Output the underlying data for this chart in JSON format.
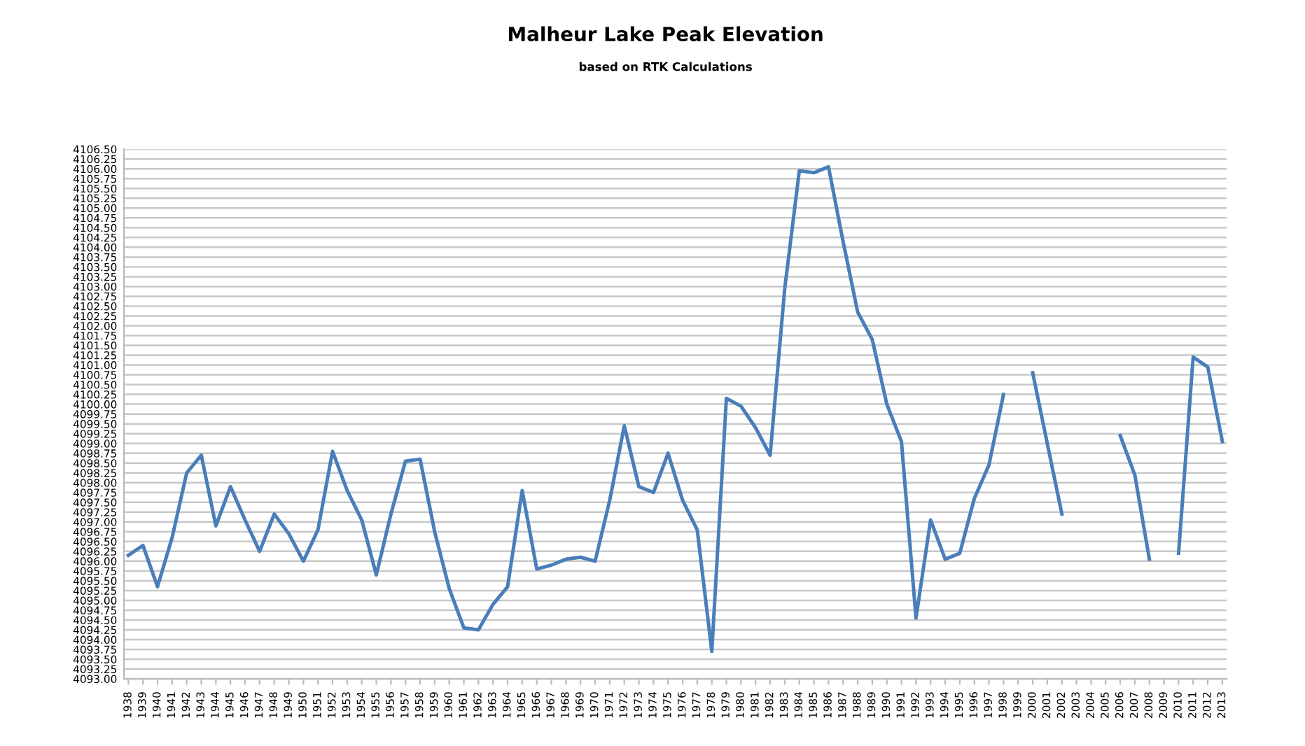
{
  "chart_data": {
    "type": "line",
    "title": "Malheur Lake Peak Elevation",
    "subtitle": "based on RTK Calculations",
    "categories": [
      "1938",
      "1939",
      "1940",
      "1941",
      "1942",
      "1943",
      "1944",
      "1945",
      "1946",
      "1947",
      "1948",
      "1949",
      "1950",
      "1951",
      "1952",
      "1953",
      "1954",
      "1955",
      "1956",
      "1957",
      "1958",
      "1959",
      "1960",
      "1961",
      "1962",
      "1963",
      "1964",
      "1965",
      "1966",
      "1967",
      "1968",
      "1969",
      "1970",
      "1971",
      "1972",
      "1973",
      "1974",
      "1975",
      "1976",
      "1977",
      "1978",
      "1979",
      "1980",
      "1981",
      "1982",
      "1983",
      "1984",
      "1985",
      "1986",
      "1987",
      "1988",
      "1989",
      "1990",
      "1991",
      "1992",
      "1993",
      "1994",
      "1995",
      "1996",
      "1997",
      "1998",
      "1999",
      "2000",
      "2001",
      "2002",
      "2003",
      "2004",
      "2005",
      "2006",
      "2007",
      "2008",
      "2009",
      "2010",
      "2011",
      "2012",
      "2013"
    ],
    "series": [
      {
        "color": "#4a7ebb",
        "values": [
          4096.15,
          4096.4,
          4095.35,
          4096.6,
          4098.25,
          4098.7,
          4096.9,
          4097.9,
          4097.05,
          4096.25,
          4097.2,
          4096.7,
          4096.0,
          4096.8,
          4098.8,
          4097.8,
          4097.05,
          4095.65,
          4097.2,
          4098.55,
          4098.6,
          4096.75,
          4095.3,
          4094.3,
          4094.25,
          4094.9,
          4095.35,
          4097.8,
          4095.8,
          4095.9,
          4096.05,
          4096.1,
          4096.0,
          4097.55,
          4099.45,
          4097.9,
          4097.75,
          4098.75,
          4097.55,
          4096.8,
          4093.7,
          4100.15,
          4099.95,
          4099.4,
          4098.7,
          4102.95,
          4105.95,
          4105.9,
          4106.05,
          4104.15,
          4102.35,
          4101.65,
          4100.0,
          4099.05,
          4094.55,
          4097.05,
          4096.05,
          4096.2,
          4097.6,
          4098.45,
          4100.25,
          null,
          4100.8,
          4099.0,
          4097.2,
          null,
          null,
          null,
          4099.2,
          4098.2,
          4096.05,
          null,
          4096.2,
          4101.2,
          4100.95,
          4099.05
        ]
      }
    ],
    "ylim": [
      4093.0,
      4106.5
    ],
    "yticks": [
      {
        "value": 4093.0,
        "label": "4093.00"
      },
      {
        "value": 4093.25,
        "label": "4093.25"
      },
      {
        "value": 4093.5,
        "label": "4093.50"
      },
      {
        "value": 4093.75,
        "label": "4093.75"
      },
      {
        "value": 4094.0,
        "label": "4094.00"
      },
      {
        "value": 4094.25,
        "label": "4094.25"
      },
      {
        "value": 4094.5,
        "label": "4094.50"
      },
      {
        "value": 4094.75,
        "label": "4094.75"
      },
      {
        "value": 4095.0,
        "label": "4095.00"
      },
      {
        "value": 4095.25,
        "label": "4095.25"
      },
      {
        "value": 4095.5,
        "label": "4095.50"
      },
      {
        "value": 4095.75,
        "label": "4095.75"
      },
      {
        "value": 4096.0,
        "label": "4096.00"
      },
      {
        "value": 4096.25,
        "label": "4096.25"
      },
      {
        "value": 4096.5,
        "label": "4096.50"
      },
      {
        "value": 4096.75,
        "label": "4096.75"
      },
      {
        "value": 4097.0,
        "label": "4097.00"
      },
      {
        "value": 4097.25,
        "label": "4097.25"
      },
      {
        "value": 4097.5,
        "label": "4097.50"
      },
      {
        "value": 4097.75,
        "label": "4097.75"
      },
      {
        "value": 4098.0,
        "label": "4098.00"
      },
      {
        "value": 4098.25,
        "label": "4098.25"
      },
      {
        "value": 4098.5,
        "label": "4098.50"
      },
      {
        "value": 4098.75,
        "label": "4098.75"
      },
      {
        "value": 4099.0,
        "label": "4099.00"
      },
      {
        "value": 4099.25,
        "label": "4099.25"
      },
      {
        "value": 4099.5,
        "label": "4099.50"
      },
      {
        "value": 4099.75,
        "label": "4099.75"
      },
      {
        "value": 4100.0,
        "label": "4100.00"
      },
      {
        "value": 4100.25,
        "label": "4100.25"
      },
      {
        "value": 4100.5,
        "label": "4100.50"
      },
      {
        "value": 4100.75,
        "label": "4100.75"
      },
      {
        "value": 4101.0,
        "label": "4101.00"
      },
      {
        "value": 4101.25,
        "label": "4101.25"
      },
      {
        "value": 4101.5,
        "label": "4101.50"
      },
      {
        "value": 4101.75,
        "label": "4101.75"
      },
      {
        "value": 4102.0,
        "label": "4102.00"
      },
      {
        "value": 4102.25,
        "label": "4102.25"
      },
      {
        "value": 4102.5,
        "label": "4102.50"
      },
      {
        "value": 4102.75,
        "label": "4102.75"
      },
      {
        "value": 4103.0,
        "label": "4103.00"
      },
      {
        "value": 4103.25,
        "label": "4103.25"
      },
      {
        "value": 4103.5,
        "label": "4103.50"
      },
      {
        "value": 4103.75,
        "label": "4103.75"
      },
      {
        "value": 4104.0,
        "label": "4104.00"
      },
      {
        "value": 4104.25,
        "label": "4104.25"
      },
      {
        "value": 4104.5,
        "label": "4104.50"
      },
      {
        "value": 4104.75,
        "label": "4104.75"
      },
      {
        "value": 4105.0,
        "label": "4105.00"
      },
      {
        "value": 4105.25,
        "label": "4105.25"
      },
      {
        "value": 4105.5,
        "label": "4105.50"
      },
      {
        "value": 4105.75,
        "label": "4105.75"
      },
      {
        "value": 4106.0,
        "label": "4106.00"
      },
      {
        "value": 4106.25,
        "label": "4106.25"
      },
      {
        "value": 4106.5,
        "label": "4106.50"
      }
    ],
    "grid": "y",
    "legend": false,
    "marker": "none",
    "line_style": "solid"
  }
}
